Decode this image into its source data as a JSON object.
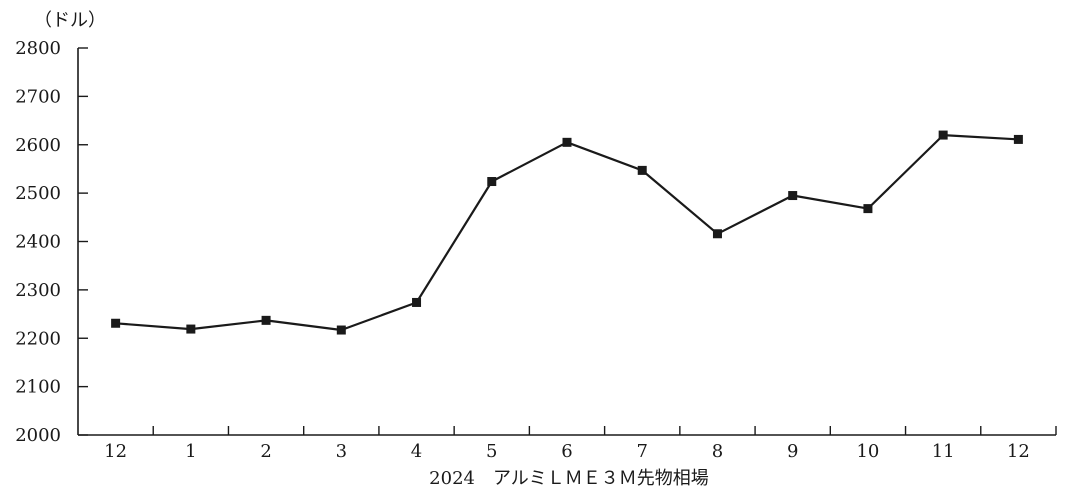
{
  "chart_data": {
    "type": "line",
    "unit_label": "（ドル）",
    "xlabel": "2024　アルミＬＭＥ３Ｍ先物相場",
    "ylim": [
      2000,
      2800
    ],
    "y_ticks": [
      2000,
      2100,
      2200,
      2300,
      2400,
      2500,
      2600,
      2700,
      2800
    ],
    "x_tick_labels": [
      "12",
      "1",
      "2",
      "3",
      "4",
      "5",
      "6",
      "7",
      "8",
      "9",
      "10",
      "11",
      "12"
    ],
    "points": [
      {
        "x": 11.5,
        "y": 2231
      },
      {
        "x": 12.5,
        "y": 2219
      },
      {
        "x": 13.5,
        "y": 2237
      },
      {
        "x": 14.5,
        "y": 2217
      },
      {
        "x": 15.5,
        "y": 2274
      },
      {
        "x": 16.5,
        "y": 2524
      },
      {
        "x": 17.5,
        "y": 2605
      },
      {
        "x": 18.5,
        "y": 2547
      },
      {
        "x": 19.5,
        "y": 2416
      },
      {
        "x": 20.5,
        "y": 2495
      },
      {
        "x": 21.5,
        "y": 2468
      },
      {
        "x": 22.5,
        "y": 2620
      },
      {
        "x": 23.5,
        "y": 2611
      }
    ],
    "x_tick_values": [
      12,
      13,
      14,
      15,
      16,
      17,
      18,
      19,
      20,
      21,
      22,
      23,
      24
    ],
    "xlim": [
      11,
      24
    ],
    "grid": false,
    "line_color": "#1a1a1a",
    "marker": "square"
  }
}
